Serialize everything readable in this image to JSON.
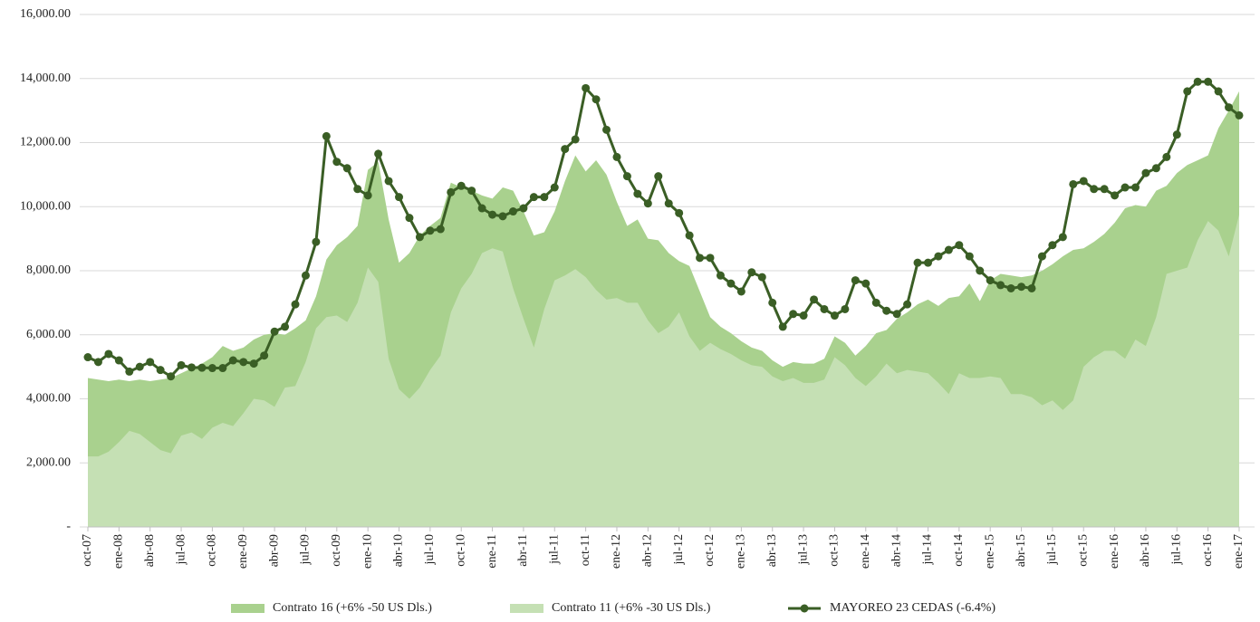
{
  "chart_data": {
    "type": "area-line",
    "categories": [
      "oct-07",
      null,
      null,
      "ene-08",
      null,
      null,
      "abr-08",
      null,
      null,
      "jul-08",
      null,
      null,
      "oct-08",
      null,
      null,
      "ene-09",
      null,
      null,
      "abr-09",
      null,
      null,
      "jul-09",
      null,
      null,
      "oct-09",
      null,
      null,
      "ene-10",
      null,
      null,
      "abr-10",
      null,
      null,
      "jul-10",
      null,
      null,
      "oct-10",
      null,
      null,
      "ene-11",
      null,
      null,
      "abr-11",
      null,
      null,
      "jul-11",
      null,
      null,
      "oct-11",
      null,
      null,
      "ene-12",
      null,
      null,
      "abr-12",
      null,
      null,
      "jul-12",
      null,
      null,
      "oct-12",
      null,
      null,
      "ene-13",
      null,
      null,
      "abr-13",
      null,
      null,
      "jul-13",
      null,
      null,
      "oct-13",
      null,
      null,
      "ene-14",
      null,
      null,
      "abr-14",
      null,
      null,
      "jul-14",
      null,
      null,
      "oct-14",
      null,
      null,
      "ene-15",
      null,
      null,
      "abr-15",
      null,
      null,
      "jul-15",
      null,
      null,
      "oct-15",
      null,
      null,
      "ene-16",
      null,
      null,
      "abr-16",
      null,
      null,
      "jul-16",
      null,
      null,
      "oct-16",
      null,
      null,
      "ene-17"
    ],
    "series": [
      {
        "name": "Contrato 16 (+6% -50 US Dls.)",
        "kind": "area",
        "color": "#a9d18e",
        "values": [
          4650,
          4600,
          4550,
          4600,
          4550,
          4600,
          4550,
          4600,
          4650,
          4800,
          4950,
          5100,
          5300,
          5650,
          5500,
          5600,
          5850,
          6000,
          6050,
          6000,
          6200,
          6450,
          7200,
          8350,
          8800,
          9050,
          9400,
          11150,
          11400,
          9600,
          8250,
          8550,
          9100,
          9400,
          9650,
          10750,
          10600,
          10500,
          10350,
          10250,
          10600,
          10500,
          9850,
          9100,
          9200,
          9850,
          10800,
          11600,
          11100,
          11450,
          11000,
          10150,
          9400,
          9600,
          9000,
          8950,
          8550,
          8300,
          8150,
          7350,
          6550,
          6250,
          6050,
          5800,
          5600,
          5500,
          5200,
          5000,
          5150,
          5100,
          5100,
          5250,
          5950,
          5750,
          5350,
          5650,
          6050,
          6150,
          6500,
          6700,
          6950,
          7100,
          6900,
          7150,
          7200,
          7600,
          7050,
          7700,
          7900,
          7850,
          7800,
          7850,
          8000,
          8200,
          8450,
          8650,
          8700,
          8900,
          9150,
          9500,
          9950,
          10050,
          10000,
          10500,
          10650,
          11050,
          11300,
          11450,
          11600,
          12450,
          13000,
          13600
        ]
      },
      {
        "name": "Contrato 11 (+6% -30 US Dls.)",
        "kind": "area",
        "color": "#c5e0b4",
        "values": [
          2200,
          2200,
          2350,
          2650,
          3000,
          2900,
          2650,
          2400,
          2300,
          2850,
          2950,
          2750,
          3100,
          3250,
          3150,
          3550,
          4000,
          3950,
          3750,
          4350,
          4400,
          5150,
          6200,
          6550,
          6600,
          6400,
          7000,
          8100,
          7650,
          5250,
          4300,
          4000,
          4350,
          4900,
          5350,
          6700,
          7450,
          7900,
          8550,
          8700,
          8600,
          7450,
          6500,
          5600,
          6800,
          7700,
          7850,
          8050,
          7800,
          7400,
          7100,
          7150,
          7000,
          7000,
          6450,
          6050,
          6250,
          6700,
          5950,
          5500,
          5750,
          5550,
          5400,
          5200,
          5050,
          5000,
          4700,
          4550,
          4650,
          4500,
          4500,
          4600,
          5300,
          5050,
          4650,
          4400,
          4700,
          5100,
          4800,
          4900,
          4850,
          4800,
          4500,
          4150,
          4800,
          4650,
          4650,
          4700,
          4650,
          4150,
          4150,
          4050,
          3800,
          3950,
          3650,
          3950,
          5000,
          5300,
          5500,
          5500,
          5250,
          5850,
          5650,
          6550,
          7900,
          8000,
          8100,
          8950,
          9550,
          9250,
          8450,
          9750
        ]
      },
      {
        "name": "MAYOREO 23 CEDAS (-6.4%)",
        "kind": "line",
        "color": "#3a5e25",
        "values": [
          5300,
          5150,
          5400,
          5200,
          4850,
          5000,
          5150,
          4900,
          4700,
          5050,
          4980,
          4970,
          4960,
          4960,
          5200,
          5150,
          5100,
          5350,
          6100,
          6250,
          6950,
          7850,
          8900,
          12200,
          11400,
          11200,
          10550,
          10350,
          11650,
          10800,
          10300,
          9650,
          9050,
          9250,
          9300,
          10450,
          10650,
          10500,
          9950,
          9750,
          9700,
          9850,
          9950,
          10300,
          10300,
          10600,
          11800,
          12100,
          13700,
          13350,
          12400,
          11550,
          10950,
          10400,
          10100,
          10950,
          10100,
          9800,
          9100,
          8400,
          8400,
          7850,
          7600,
          7350,
          7950,
          7800,
          7000,
          6250,
          6650,
          6600,
          7100,
          6800,
          6600,
          6800,
          7700,
          7600,
          7000,
          6750,
          6650,
          6950,
          8250,
          8250,
          8450,
          8650,
          8800,
          8450,
          8000,
          7700,
          7550,
          7450,
          7500,
          7450,
          8450,
          8800,
          9050,
          10700,
          10800,
          10550,
          10550,
          10350,
          10600,
          10600,
          11050,
          11200,
          11550,
          12250,
          13600,
          13900,
          13900,
          13600,
          13100,
          12850
        ]
      }
    ],
    "ylim": [
      0,
      16000
    ],
    "yticks": [
      {
        "value": 0,
        "label": "-"
      },
      {
        "value": 2000,
        "label": "2,000.00"
      },
      {
        "value": 4000,
        "label": "4,000.00"
      },
      {
        "value": 6000,
        "label": "6,000.00"
      },
      {
        "value": 8000,
        "label": "8,000.00"
      },
      {
        "value": 10000,
        "label": "10,000.00"
      },
      {
        "value": 12000,
        "label": "12,000.00"
      },
      {
        "value": 14000,
        "label": "14,000.00"
      },
      {
        "value": 16000,
        "label": "16,000.00"
      }
    ],
    "grid": true
  }
}
